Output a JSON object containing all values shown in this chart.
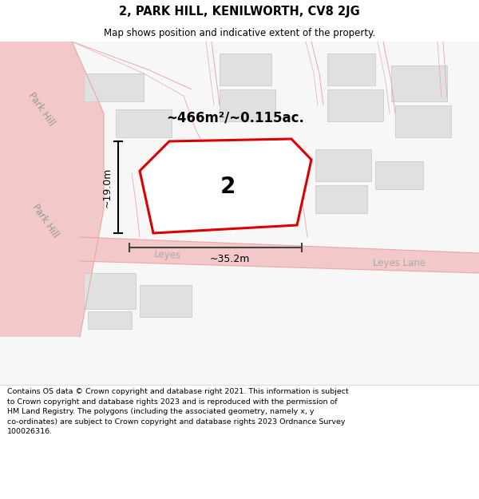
{
  "title": "2, PARK HILL, KENILWORTH, CV8 2JG",
  "subtitle": "Map shows position and indicative extent of the property.",
  "footer": "Contains OS data © Crown copyright and database right 2021. This information is subject\nto Crown copyright and database rights 2023 and is reproduced with the permission of\nHM Land Registry. The polygons (including the associated geometry, namely x, y\nco-ordinates) are subject to Crown copyright and database rights 2023 Ordnance Survey\n100026316.",
  "bg_color": "#ffffff",
  "map_bg": "#f8f8f8",
  "road_color": "#f2c8c8",
  "road_edge_color": "#e8a8a8",
  "building_fill": "#e0e0e0",
  "building_edge": "#cccccc",
  "plot_color": "#dd0000",
  "area_text": "~466m²/~0.115ac.",
  "number_text": "2",
  "dim_width": "~35.2m",
  "dim_height": "~19.0m",
  "street_park_hill_1": "Park Hill",
  "street_park_hill_2": "Park Hill",
  "street_leyes_lane": "Leyes Lane",
  "street_leyes": "Leyes"
}
